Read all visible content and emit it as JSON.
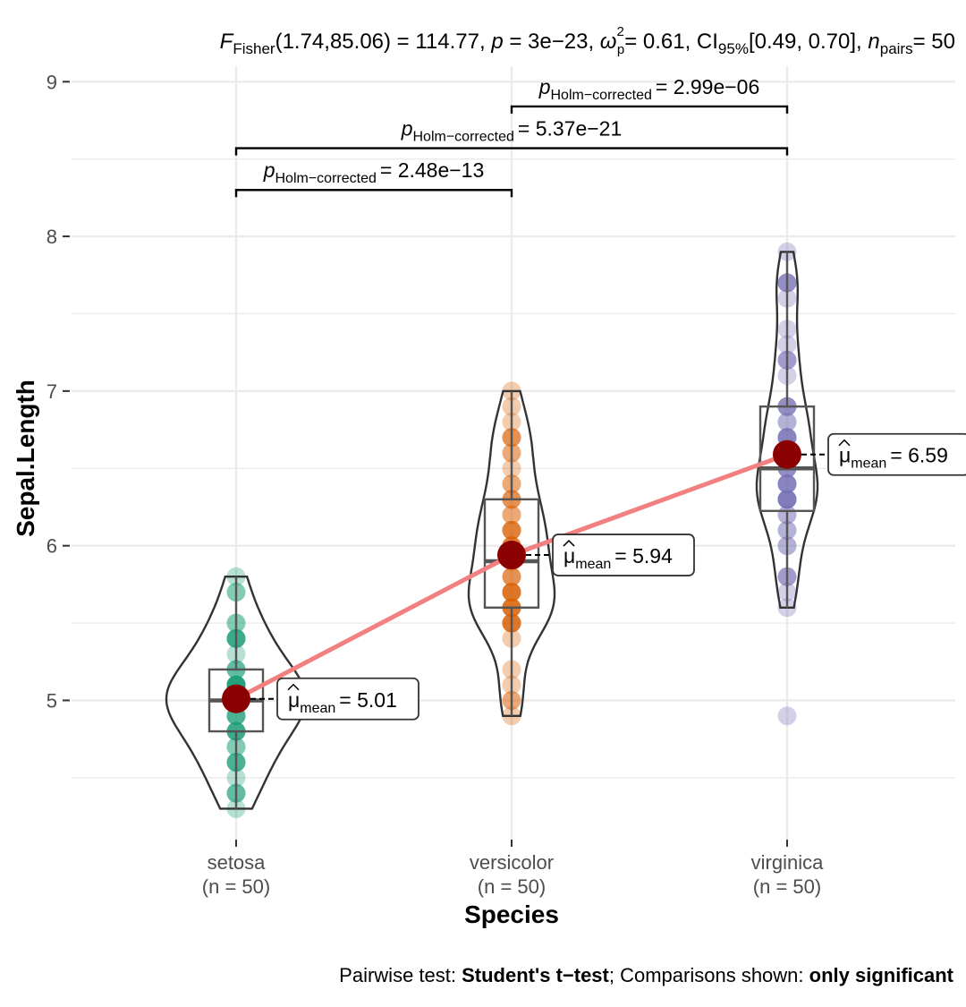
{
  "subtitle": {
    "F_symbol": "F",
    "F_sub": "Fisher",
    "F_args": "(1.74,85.06) = 114.77,",
    "p_symbol": "p",
    "p_value": "= 3e−23,",
    "omega_symbol": "ω",
    "omega_sup": "2",
    "omega_sub": "p",
    "omega_value": "= 0.61,",
    "ci_symbol": "CI",
    "ci_sub": "95%",
    "ci_value": "[0.49, 0.70],",
    "n_symbol": "n",
    "n_sub": "pairs",
    "n_value": "= 50"
  },
  "caption": {
    "prefix": "Pairwise test: ",
    "test": "Student's t−test",
    "middle": "; Comparisons shown: ",
    "shown": "only significant"
  },
  "colors": {
    "setosa": "#1B9E77",
    "versicolor": "#D95F02",
    "virginica": "#7570B3",
    "mean_point": "#8B0000",
    "mean_line": "#F28080",
    "grid": "#EBEBEB"
  },
  "chart_data": {
    "type": "violin",
    "xlabel": "Species",
    "ylabel": "Sepal.Length",
    "ylim": [
      4.1,
      9.1
    ],
    "yticks": [
      5,
      6,
      7,
      8,
      9
    ],
    "grid": true,
    "categories": [
      {
        "name": "setosa",
        "n_label": "(n = 50)",
        "mean": 5.01,
        "mean_label": "= 5.01",
        "box": {
          "q1": 4.8,
          "median": 5.0,
          "q3": 5.2,
          "whisker_low": 4.3,
          "whisker_high": 5.8
        },
        "points": [
          4.3,
          4.4,
          4.4,
          4.4,
          4.5,
          4.6,
          4.6,
          4.6,
          4.6,
          4.7,
          4.7,
          4.8,
          4.8,
          4.8,
          4.8,
          4.8,
          4.9,
          4.9,
          4.9,
          4.9,
          5.0,
          5.0,
          5.0,
          5.0,
          5.0,
          5.0,
          5.0,
          5.0,
          5.1,
          5.1,
          5.1,
          5.1,
          5.1,
          5.1,
          5.1,
          5.1,
          5.2,
          5.2,
          5.2,
          5.3,
          5.4,
          5.4,
          5.4,
          5.4,
          5.4,
          5.5,
          5.5,
          5.7,
          5.7,
          5.8
        ]
      },
      {
        "name": "versicolor",
        "n_label": "(n = 50)",
        "mean": 5.94,
        "mean_label": "= 5.94",
        "box": {
          "q1": 5.6,
          "median": 5.9,
          "q3": 6.3,
          "whisker_low": 4.9,
          "whisker_high": 7.0
        },
        "points": [
          4.9,
          5.0,
          5.0,
          5.1,
          5.2,
          5.4,
          5.5,
          5.5,
          5.5,
          5.5,
          5.5,
          5.6,
          5.6,
          5.6,
          5.6,
          5.6,
          5.7,
          5.7,
          5.7,
          5.7,
          5.7,
          5.8,
          5.8,
          5.8,
          5.9,
          5.9,
          6.0,
          6.0,
          6.0,
          6.0,
          6.1,
          6.1,
          6.1,
          6.1,
          6.2,
          6.2,
          6.3,
          6.3,
          6.3,
          6.4,
          6.4,
          6.5,
          6.6,
          6.6,
          6.7,
          6.7,
          6.7,
          6.8,
          6.9,
          7.0
        ]
      },
      {
        "name": "virginica",
        "n_label": "(n = 50)",
        "mean": 6.59,
        "mean_label": "= 6.59",
        "box": {
          "q1": 6.225,
          "median": 6.5,
          "q3": 6.9,
          "whisker_low": 5.6,
          "whisker_high": 7.9
        },
        "points": [
          4.9,
          5.6,
          5.7,
          5.8,
          5.8,
          5.8,
          6.0,
          6.0,
          6.1,
          6.1,
          6.2,
          6.2,
          6.3,
          6.3,
          6.3,
          6.3,
          6.3,
          6.3,
          6.4,
          6.4,
          6.4,
          6.4,
          6.4,
          6.5,
          6.5,
          6.5,
          6.5,
          6.7,
          6.7,
          6.7,
          6.7,
          6.7,
          6.8,
          6.8,
          6.9,
          6.9,
          6.9,
          6.9,
          7.1,
          7.2,
          7.2,
          7.2,
          7.3,
          7.4,
          7.6,
          7.7,
          7.7,
          7.7,
          7.7,
          7.9
        ]
      }
    ],
    "comparisons": [
      {
        "from": "setosa",
        "to": "versicolor",
        "p_label": "= 2.48e−13",
        "y": 8.3
      },
      {
        "from": "setosa",
        "to": "virginica",
        "p_label": "= 5.37e−21",
        "y": 8.57
      },
      {
        "from": "versicolor",
        "to": "virginica",
        "p_label": "= 2.99e−06",
        "y": 8.84
      }
    ],
    "p_symbol": "p",
    "p_sub": "Holm−corrected",
    "mean_symbol": "μ",
    "mean_sub": "mean"
  }
}
